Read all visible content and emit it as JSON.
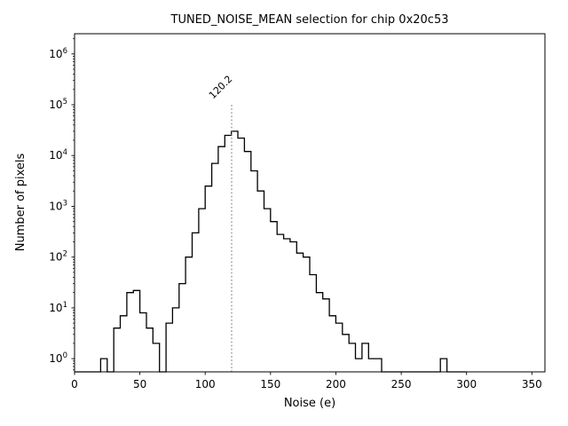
{
  "chart_data": {
    "type": "histogram-step",
    "title": "TUNED_NOISE_MEAN selection for chip 0x20c53",
    "xlabel": "Noise (e)",
    "ylabel": "Number of pixels",
    "xlim": [
      0,
      360
    ],
    "ylim_log": [
      0.55,
      2500000
    ],
    "xticks": [
      0,
      50,
      100,
      150,
      200,
      250,
      300,
      350
    ],
    "ytick_exponents": [
      0,
      1,
      2,
      3,
      4,
      5,
      6
    ],
    "grid": false,
    "legend": "none",
    "line_color": "#000000",
    "background_color": "#ffffff",
    "bin_start": 0,
    "bin_width": 5,
    "counts": [
      0,
      0,
      0,
      0,
      1,
      0,
      4,
      7,
      20,
      22,
      8,
      4,
      2,
      0,
      5,
      10,
      30,
      100,
      300,
      900,
      2500,
      7000,
      15000,
      25000,
      30000,
      22000,
      12000,
      5000,
      2000,
      900,
      500,
      280,
      230,
      200,
      120,
      100,
      45,
      20,
      15,
      7,
      5,
      3,
      2,
      1,
      2,
      1,
      1,
      0,
      0,
      0,
      0,
      0,
      0,
      0,
      0,
      0,
      1,
      0,
      0,
      0
    ],
    "vline": {
      "x": 120.2,
      "label": "120.2",
      "color": "#888888",
      "top_value": 100000
    }
  }
}
